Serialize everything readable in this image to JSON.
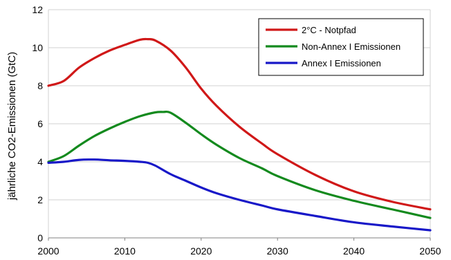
{
  "chart_data": {
    "type": "line",
    "ylabel": "jährliche CO2-Emissionen (GtC)",
    "xlabel": "",
    "xlim": [
      2000,
      2050
    ],
    "ylim": [
      0,
      12
    ],
    "x_ticks": [
      2000,
      2010,
      2020,
      2030,
      2040,
      2050
    ],
    "y_ticks": [
      0,
      2,
      4,
      6,
      8,
      10,
      12
    ],
    "grid": "horizontal",
    "legend_position": "top-right",
    "series": [
      {
        "name": "2°C - Notpfad",
        "color": "#d01818",
        "points": [
          [
            2000,
            8.0
          ],
          [
            2002,
            8.25
          ],
          [
            2004,
            8.95
          ],
          [
            2006,
            9.45
          ],
          [
            2008,
            9.85
          ],
          [
            2010,
            10.15
          ],
          [
            2012,
            10.42
          ],
          [
            2013,
            10.45
          ],
          [
            2014,
            10.38
          ],
          [
            2016,
            9.85
          ],
          [
            2018,
            8.95
          ],
          [
            2020,
            7.85
          ],
          [
            2022,
            6.95
          ],
          [
            2025,
            5.85
          ],
          [
            2028,
            4.95
          ],
          [
            2030,
            4.4
          ],
          [
            2035,
            3.3
          ],
          [
            2040,
            2.45
          ],
          [
            2045,
            1.9
          ],
          [
            2050,
            1.5
          ]
        ]
      },
      {
        "name": "Non-Annex I Emissionen",
        "color": "#148a1e",
        "points": [
          [
            2000,
            4.0
          ],
          [
            2002,
            4.3
          ],
          [
            2004,
            4.85
          ],
          [
            2006,
            5.35
          ],
          [
            2008,
            5.75
          ],
          [
            2010,
            6.1
          ],
          [
            2012,
            6.4
          ],
          [
            2014,
            6.6
          ],
          [
            2015,
            6.62
          ],
          [
            2016,
            6.58
          ],
          [
            2018,
            6.05
          ],
          [
            2020,
            5.45
          ],
          [
            2022,
            4.9
          ],
          [
            2025,
            4.2
          ],
          [
            2028,
            3.65
          ],
          [
            2030,
            3.25
          ],
          [
            2035,
            2.5
          ],
          [
            2040,
            1.95
          ],
          [
            2045,
            1.5
          ],
          [
            2050,
            1.05
          ]
        ]
      },
      {
        "name": "Annex I Emissionen",
        "color": "#1818c8",
        "points": [
          [
            2000,
            3.95
          ],
          [
            2002,
            4.0
          ],
          [
            2004,
            4.1
          ],
          [
            2006,
            4.12
          ],
          [
            2008,
            4.08
          ],
          [
            2010,
            4.05
          ],
          [
            2012,
            4.0
          ],
          [
            2013,
            3.95
          ],
          [
            2014,
            3.8
          ],
          [
            2016,
            3.35
          ],
          [
            2018,
            3.0
          ],
          [
            2020,
            2.65
          ],
          [
            2022,
            2.35
          ],
          [
            2025,
            2.0
          ],
          [
            2028,
            1.7
          ],
          [
            2030,
            1.5
          ],
          [
            2035,
            1.15
          ],
          [
            2040,
            0.82
          ],
          [
            2045,
            0.6
          ],
          [
            2050,
            0.4
          ]
        ]
      }
    ]
  }
}
